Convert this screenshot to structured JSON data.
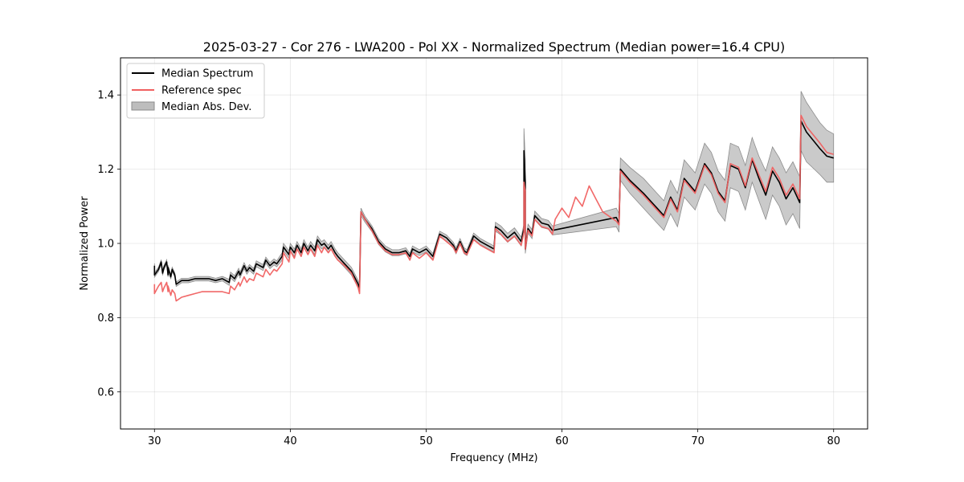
{
  "chart_data": {
    "type": "line",
    "title": "2025-03-27 - Cor 276 - LWA200 - Pol XX - Normalized Spectrum (Median power=16.4 CPU)",
    "xlabel": "Frequency (MHz)",
    "ylabel": "Normalized Power",
    "xlim": [
      27.5,
      82.5
    ],
    "ylim": [
      0.5,
      1.5
    ],
    "xticks": [
      30,
      40,
      50,
      60,
      70,
      80
    ],
    "yticks": [
      0.6,
      0.8,
      1.0,
      1.2,
      1.4
    ],
    "xtick_labels": [
      "30",
      "40",
      "50",
      "60",
      "70",
      "80"
    ],
    "ytick_labels": [
      "0.6",
      "0.8",
      "1.0",
      "1.2",
      "1.4"
    ],
    "grid": true,
    "legend_position": "top-left",
    "colors": {
      "median": "#000000",
      "reference": "#f06060",
      "mad_fill": "#bdbdbd",
      "mad_edge": "#8c8c8c"
    },
    "series": [
      {
        "name": "Median Spectrum",
        "kind": "line",
        "x": [
          30.0,
          30.0,
          30.3,
          30.5,
          30.6,
          30.7,
          30.9,
          31.0,
          31.0,
          31.2,
          31.3,
          31.5,
          31.6,
          31.8,
          32.0,
          32.5,
          33.0,
          33.5,
          34.0,
          34.5,
          35.0,
          35.5,
          35.6,
          35.9,
          36.2,
          36.3,
          36.6,
          36.8,
          37.0,
          37.3,
          37.5,
          38.0,
          38.2,
          38.5,
          38.8,
          39.0,
          39.4,
          39.5,
          39.9,
          40.0,
          40.3,
          40.5,
          40.8,
          41.0,
          41.3,
          41.5,
          41.8,
          42.0,
          42.3,
          42.5,
          42.8,
          43.0,
          43.3,
          43.5,
          44.0,
          44.5,
          45.0,
          45.1,
          45.2,
          45.5,
          46.0,
          46.5,
          47.0,
          47.5,
          48.0,
          48.5,
          48.8,
          49.0,
          49.5,
          50.0,
          50.5,
          51.0,
          51.5,
          52.0,
          52.2,
          52.5,
          52.8,
          53.0,
          53.5,
          54.0,
          54.5,
          55.0,
          55.1,
          55.5,
          56.0,
          56.5,
          57.0,
          57.2,
          57.2,
          57.3,
          57.3,
          57.5,
          57.8,
          58.0,
          58.5,
          59.0,
          59.3,
          64.0,
          64.2,
          64.3,
          65.0,
          66.0,
          67.0,
          67.5,
          68.0,
          68.5,
          69.0,
          69.8,
          70.5,
          71.0,
          71.5,
          72.0,
          72.4,
          73.0,
          73.5,
          74.0,
          74.5,
          75.0,
          75.5,
          76.0,
          76.5,
          77.0,
          77.5,
          77.6,
          78.0,
          79.0,
          79.5,
          80.0
        ],
        "values": [
          0.94,
          0.915,
          0.93,
          0.95,
          0.92,
          0.935,
          0.95,
          0.915,
          0.935,
          0.91,
          0.93,
          0.915,
          0.89,
          0.895,
          0.9,
          0.9,
          0.905,
          0.905,
          0.905,
          0.9,
          0.905,
          0.895,
          0.915,
          0.905,
          0.925,
          0.915,
          0.94,
          0.925,
          0.935,
          0.925,
          0.945,
          0.935,
          0.955,
          0.94,
          0.95,
          0.945,
          0.965,
          0.99,
          0.97,
          0.99,
          0.975,
          0.995,
          0.975,
          1.0,
          0.98,
          0.995,
          0.98,
          1.01,
          0.995,
          1.0,
          0.985,
          0.995,
          0.975,
          0.965,
          0.945,
          0.925,
          0.89,
          0.88,
          1.085,
          1.065,
          1.04,
          1.005,
          0.985,
          0.975,
          0.975,
          0.98,
          0.965,
          0.985,
          0.975,
          0.985,
          0.965,
          1.025,
          1.015,
          0.995,
          0.98,
          1.005,
          0.98,
          0.975,
          1.02,
          1.005,
          0.995,
          0.985,
          1.045,
          1.035,
          1.015,
          1.03,
          1.005,
          1.04,
          1.25,
          1.165,
          0.985,
          1.04,
          1.025,
          1.075,
          1.055,
          1.05,
          1.035,
          1.07,
          1.055,
          1.2,
          1.17,
          1.135,
          1.095,
          1.075,
          1.125,
          1.09,
          1.175,
          1.14,
          1.215,
          1.19,
          1.14,
          1.115,
          1.21,
          1.2,
          1.15,
          1.225,
          1.175,
          1.13,
          1.195,
          1.165,
          1.12,
          1.15,
          1.11,
          1.33,
          1.3,
          1.255,
          1.235,
          1.23
        ]
      },
      {
        "name": "Reference spec",
        "kind": "line",
        "x": [
          30.0,
          30.0,
          30.3,
          30.5,
          30.6,
          30.7,
          30.9,
          31.0,
          31.0,
          31.2,
          31.3,
          31.5,
          31.6,
          31.8,
          32.0,
          32.5,
          33.0,
          33.5,
          34.0,
          34.5,
          35.0,
          35.5,
          35.6,
          35.9,
          36.2,
          36.3,
          36.6,
          36.8,
          37.0,
          37.3,
          37.5,
          38.0,
          38.2,
          38.5,
          38.8,
          39.0,
          39.4,
          39.5,
          39.9,
          40.0,
          40.3,
          40.5,
          40.8,
          41.0,
          41.3,
          41.5,
          41.8,
          42.0,
          42.3,
          42.5,
          42.8,
          43.0,
          43.3,
          43.5,
          44.0,
          44.5,
          45.0,
          45.1,
          45.2,
          45.5,
          46.0,
          46.5,
          47.0,
          47.5,
          48.0,
          48.5,
          48.8,
          49.0,
          49.5,
          50.0,
          50.5,
          51.0,
          51.5,
          52.0,
          52.2,
          52.5,
          52.8,
          53.0,
          53.5,
          54.0,
          54.5,
          55.0,
          55.1,
          55.5,
          56.0,
          56.5,
          57.0,
          57.2,
          57.2,
          57.3,
          57.3,
          57.5,
          57.8,
          58.0,
          58.5,
          59.0,
          59.3,
          59.5,
          60.0,
          60.5,
          61.0,
          61.5,
          62.0,
          62.5,
          63.0,
          64.0,
          64.2,
          64.3,
          65.0,
          66.0,
          67.0,
          67.5,
          68.0,
          68.5,
          69.0,
          69.8,
          70.5,
          71.0,
          71.5,
          72.0,
          72.4,
          73.0,
          73.5,
          74.0,
          74.5,
          75.0,
          75.5,
          76.0,
          76.5,
          77.0,
          77.5,
          77.6,
          78.0,
          79.0,
          79.5,
          80.0
        ],
        "values": [
          0.89,
          0.865,
          0.885,
          0.895,
          0.87,
          0.88,
          0.895,
          0.87,
          0.885,
          0.86,
          0.875,
          0.865,
          0.845,
          0.85,
          0.855,
          0.86,
          0.865,
          0.87,
          0.87,
          0.87,
          0.87,
          0.865,
          0.885,
          0.875,
          0.895,
          0.885,
          0.91,
          0.895,
          0.905,
          0.9,
          0.92,
          0.91,
          0.93,
          0.915,
          0.93,
          0.925,
          0.945,
          0.975,
          0.95,
          0.98,
          0.96,
          0.985,
          0.965,
          0.99,
          0.97,
          0.985,
          0.965,
          0.995,
          0.975,
          0.99,
          0.975,
          0.985,
          0.965,
          0.955,
          0.94,
          0.92,
          0.88,
          0.865,
          1.085,
          1.065,
          1.035,
          1.0,
          0.98,
          0.97,
          0.97,
          0.975,
          0.955,
          0.975,
          0.96,
          0.975,
          0.955,
          1.02,
          1.005,
          0.99,
          0.975,
          1.0,
          0.975,
          0.97,
          1.01,
          0.995,
          0.985,
          0.975,
          1.04,
          1.025,
          1.005,
          1.02,
          0.995,
          1.03,
          1.165,
          1.14,
          0.985,
          1.035,
          1.02,
          1.065,
          1.045,
          1.04,
          1.025,
          1.065,
          1.095,
          1.07,
          1.125,
          1.1,
          1.155,
          1.12,
          1.085,
          1.06,
          1.05,
          1.195,
          1.165,
          1.13,
          1.09,
          1.07,
          1.12,
          1.085,
          1.17,
          1.135,
          1.21,
          1.185,
          1.135,
          1.11,
          1.215,
          1.205,
          1.155,
          1.23,
          1.185,
          1.14,
          1.205,
          1.175,
          1.13,
          1.16,
          1.12,
          1.345,
          1.315,
          1.27,
          1.245,
          1.24
        ]
      },
      {
        "name": "Median Abs. Dev.",
        "kind": "band",
        "note": "band = Median Spectrum ± half_width (same x grid as Median Spectrum)",
        "half_width": [
          0.006,
          0.006,
          0.006,
          0.006,
          0.006,
          0.006,
          0.006,
          0.006,
          0.006,
          0.006,
          0.006,
          0.006,
          0.006,
          0.006,
          0.006,
          0.006,
          0.006,
          0.006,
          0.006,
          0.006,
          0.006,
          0.008,
          0.008,
          0.008,
          0.008,
          0.008,
          0.008,
          0.008,
          0.008,
          0.008,
          0.008,
          0.008,
          0.008,
          0.008,
          0.008,
          0.008,
          0.01,
          0.01,
          0.01,
          0.01,
          0.01,
          0.01,
          0.01,
          0.01,
          0.01,
          0.01,
          0.01,
          0.01,
          0.01,
          0.01,
          0.01,
          0.01,
          0.01,
          0.01,
          0.01,
          0.01,
          0.01,
          0.01,
          0.01,
          0.008,
          0.008,
          0.008,
          0.008,
          0.008,
          0.008,
          0.008,
          0.008,
          0.008,
          0.008,
          0.008,
          0.008,
          0.008,
          0.008,
          0.008,
          0.008,
          0.008,
          0.008,
          0.008,
          0.008,
          0.008,
          0.008,
          0.008,
          0.012,
          0.012,
          0.012,
          0.012,
          0.012,
          0.012,
          0.06,
          0.06,
          0.012,
          0.012,
          0.012,
          0.012,
          0.012,
          0.012,
          0.012,
          0.025,
          0.025,
          0.03,
          0.035,
          0.04,
          0.04,
          0.04,
          0.045,
          0.045,
          0.05,
          0.05,
          0.055,
          0.055,
          0.055,
          0.055,
          0.06,
          0.06,
          0.06,
          0.06,
          0.06,
          0.065,
          0.065,
          0.065,
          0.07,
          0.07,
          0.07,
          0.08,
          0.08,
          0.07,
          0.07,
          0.065
        ]
      }
    ]
  }
}
